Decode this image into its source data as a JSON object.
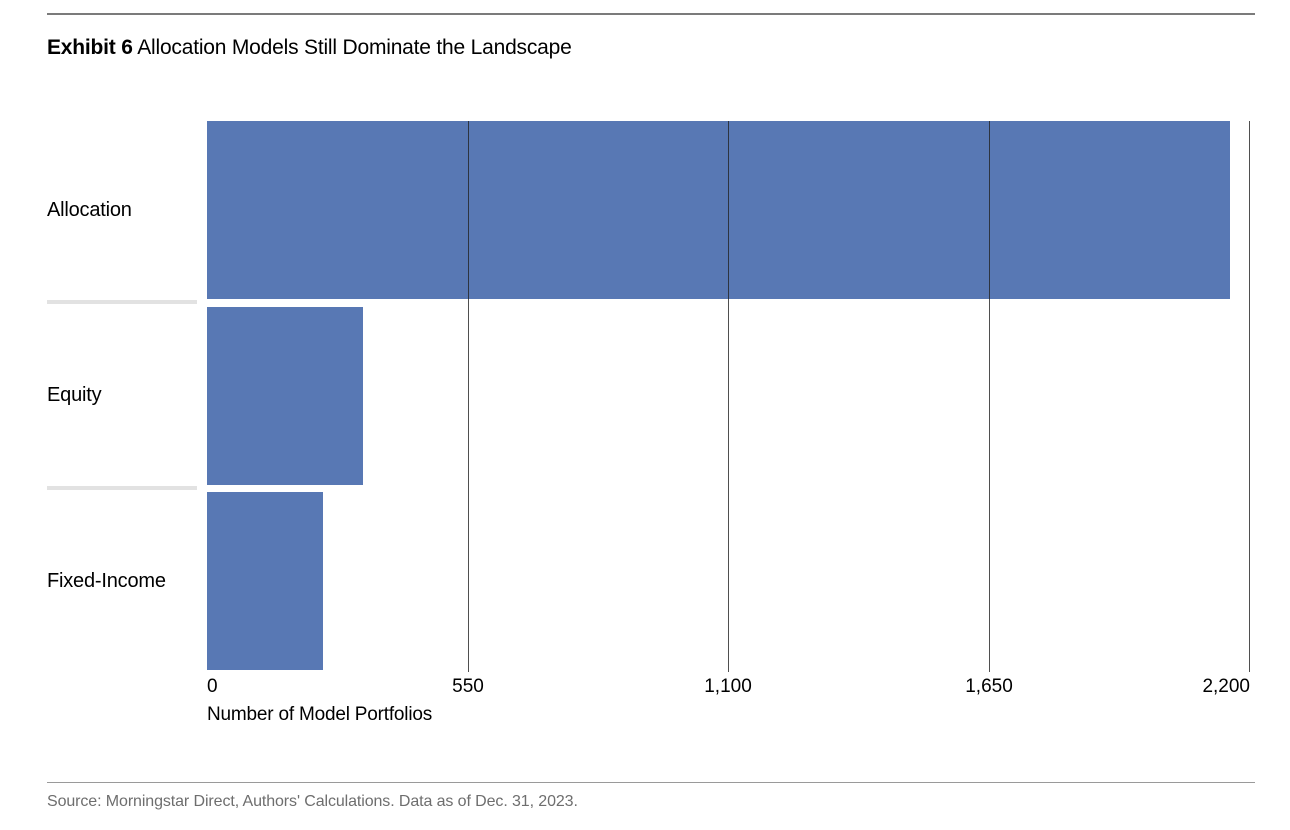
{
  "title": {
    "label": "Exhibit 6",
    "text": "Allocation Models Still Dominate the Landscape"
  },
  "source": "Source: Morningstar Direct, Authors' Calculations. Data as of Dec. 31, 2023.",
  "colors": {
    "bar": "#5878b4",
    "gridline": "#4f4f4f",
    "row_separator": "#e2e2e2",
    "top_rule": "#7b7b7b",
    "bottom_rule": "#9a9a9a",
    "source_text": "#6e6e6e"
  },
  "chart_data": {
    "type": "bar",
    "orientation": "horizontal",
    "title": "Exhibit 6 Allocation Models Still Dominate the Landscape",
    "categories": [
      "Allocation",
      "Equity",
      "Fixed-Income"
    ],
    "values": [
      2160,
      330,
      245
    ],
    "xlabel": "Number of Model Portfolios",
    "ylabel": "",
    "xlim": [
      0,
      2200
    ],
    "xticks": [
      0,
      550,
      1100,
      1650,
      2200
    ],
    "xtick_labels": [
      "0",
      "550",
      "1,100",
      "1,650",
      "2,200"
    ],
    "grid": "vertical-only",
    "legend": false,
    "bar_color": "#5878b4"
  }
}
